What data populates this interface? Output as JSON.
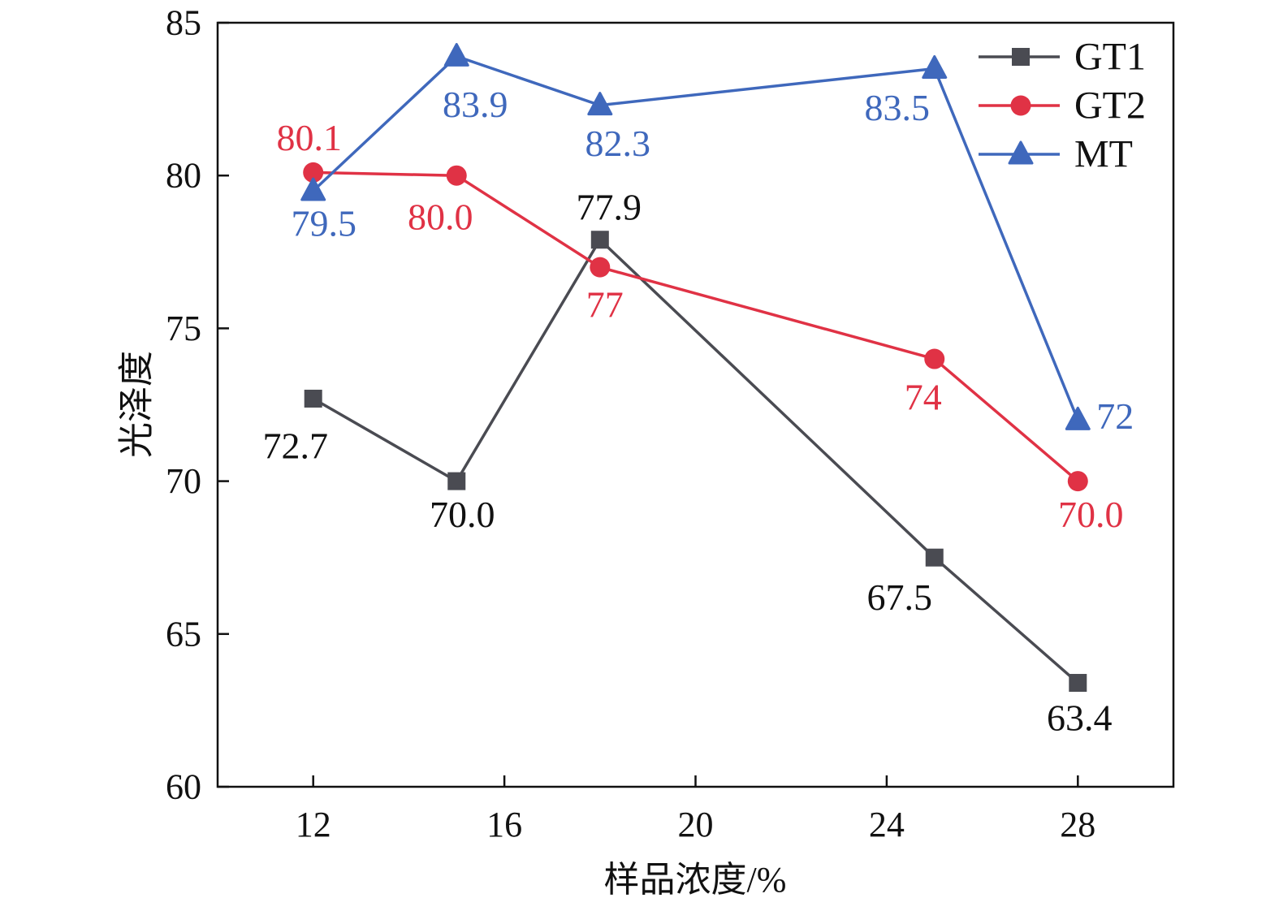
{
  "chart_data": {
    "type": "line",
    "xlabel": "样品浓度/%",
    "ylabel": "光泽度",
    "xlim": [
      10,
      30
    ],
    "ylim": [
      60,
      85
    ],
    "xticks": [
      12,
      16,
      20,
      24,
      28
    ],
    "yticks": [
      60,
      65,
      70,
      75,
      80,
      85
    ],
    "grid": false,
    "legend": "top-right",
    "x": [
      12,
      15,
      18,
      25,
      28
    ],
    "series": [
      {
        "name": "GT1",
        "marker": "square",
        "color": "#4a4b52",
        "values": [
          72.7,
          70.0,
          77.9,
          67.5,
          63.4
        ],
        "labels": [
          "72.7",
          "70.0",
          "77.9",
          "67.5",
          "63.4"
        ]
      },
      {
        "name": "GT2",
        "marker": "circle",
        "color": "#e03245",
        "values": [
          80.1,
          80.0,
          77,
          74,
          70.0
        ],
        "labels": [
          "80.1",
          "80.0",
          "77",
          "74",
          "70.0"
        ]
      },
      {
        "name": "MT",
        "marker": "triangle",
        "color": "#3f68bc",
        "values": [
          79.5,
          83.9,
          82.3,
          83.5,
          72
        ],
        "labels": [
          "79.5",
          "83.9",
          "82.3",
          "83.5",
          "72"
        ]
      }
    ]
  }
}
